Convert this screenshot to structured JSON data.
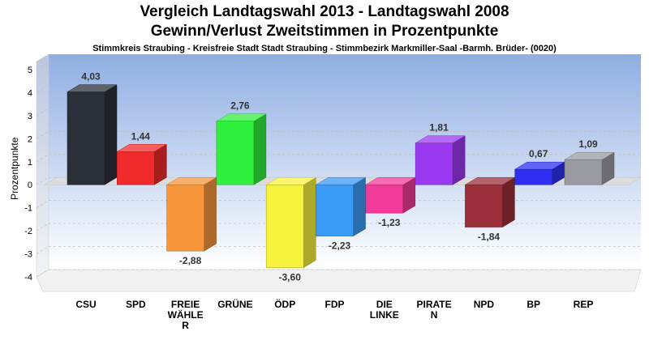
{
  "chart_data": {
    "type": "bar",
    "title": "Vergleich Landtagswahl 2013 - Landtagswahl 2008",
    "subtitle_line2": "Gewinn/Verlust Zweitstimmen in Prozentpunkte",
    "subtitle": "Stimmkreis Straubing - Kreisfreie Stadt Stadt Straubing - Stimmbezirk Markmiller-Saal -Barmh. Brüder- (0020)",
    "ylabel": "Prozentpunkte",
    "xlabel": "",
    "ylim": [
      -4,
      5
    ],
    "yticks": [
      "5",
      "4",
      "3",
      "2",
      "1",
      "0",
      "-1",
      "-2",
      "-3",
      "-4"
    ],
    "grid": true,
    "categories": [
      "CSU",
      "SPD",
      "FREIE WÄHLER",
      "GRÜNE",
      "ÖDP",
      "FDP",
      "DIE LINKE",
      "PIRATEN",
      "NPD",
      "BP",
      "REP"
    ],
    "category_display": [
      [
        "CSU"
      ],
      [
        "SPD"
      ],
      [
        "FREIE",
        "WÄHLE",
        "R"
      ],
      [
        "GRÜNE"
      ],
      [
        "ÖDP"
      ],
      [
        "FDP"
      ],
      [
        "DIE",
        "LINKE"
      ],
      [
        "PIRATE",
        "N"
      ],
      [
        "NPD"
      ],
      [
        "BP"
      ],
      [
        "REP"
      ]
    ],
    "values": [
      4.03,
      1.44,
      -2.88,
      2.76,
      -3.6,
      -2.23,
      -1.23,
      1.81,
      -1.84,
      0.67,
      1.09
    ],
    "value_labels": [
      "4,03",
      "1,44",
      "-2,88",
      "2,76",
      "-3,60",
      "-2,23",
      "-1,23",
      "1,81",
      "-1,84",
      "0,67",
      "1,09"
    ],
    "colors": [
      "#2b2f38",
      "#f02a2a",
      "#f7963a",
      "#2ff03c",
      "#f7f23c",
      "#3a9bf7",
      "#f23a9b",
      "#9b38f2",
      "#9b2f3a",
      "#2f2ff2",
      "#9a9ba0"
    ]
  }
}
